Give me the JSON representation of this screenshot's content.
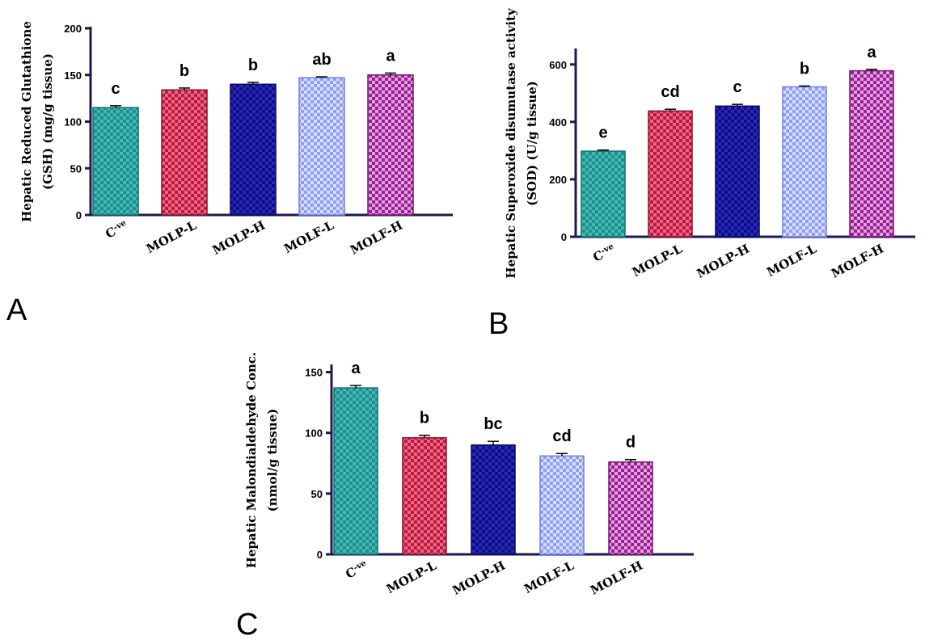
{
  "categories_raw": [
    "C-ve",
    "MOLP-L",
    "MOLP-H",
    "MOLF-L",
    "MOLF-H"
  ],
  "colors": {
    "teal": "#17928f",
    "teal_light": "#4bb5b3",
    "red": "#c0183d",
    "red_light": "#e66a86",
    "navy": "#0d0d8c",
    "navy_light": "#2a2ab0",
    "periwinkle": "#8e9ef8",
    "periwinkle_light": "#d8defe",
    "purple": "#9a1f95",
    "purple_light": "#e0a3dd",
    "axis": "#1a1a50"
  },
  "chart_data": [
    {
      "panel": "A",
      "type": "bar",
      "ylabel_line1": "Hepatic Reduced Glutathione",
      "ylabel_line2": "(GSH) (mg/g tissue)",
      "categories": [
        {
          "base": "C",
          "sup": "-ve"
        },
        {
          "base": "MOLP-L",
          "sup": ""
        },
        {
          "base": "MOLP-H",
          "sup": ""
        },
        {
          "base": "MOLF-L",
          "sup": ""
        },
        {
          "base": "MOLF-H",
          "sup": ""
        }
      ],
      "values": [
        115,
        134,
        140,
        147,
        150
      ],
      "errors": [
        2,
        2,
        2,
        1,
        2
      ],
      "letters": [
        "c",
        "b",
        "b",
        "ab",
        "a"
      ],
      "ylim": [
        0,
        200
      ],
      "yticks": [
        0,
        50,
        100,
        150,
        200
      ]
    },
    {
      "panel": "B",
      "type": "bar",
      "ylabel_line1": "Hepatic Superoxide disumutase activity",
      "ylabel_line2": "(SOD) (U/g tissue)",
      "categories": [
        {
          "base": "C",
          "sup": "-ve"
        },
        {
          "base": "MOLP-L",
          "sup": ""
        },
        {
          "base": "MOLP-H",
          "sup": ""
        },
        {
          "base": "MOLF-L",
          "sup": ""
        },
        {
          "base": "MOLF-H",
          "sup": ""
        }
      ],
      "values": [
        298,
        438,
        455,
        522,
        578
      ],
      "errors": [
        4,
        6,
        6,
        3,
        5
      ],
      "letters": [
        "e",
        "cd",
        "c",
        "b",
        "a"
      ],
      "ylim": [
        0,
        650
      ],
      "yticks": [
        0,
        200,
        400,
        600
      ]
    },
    {
      "panel": "C",
      "type": "bar",
      "ylabel_line1": "Hepatic Malondialdehyde Conc.",
      "ylabel_line2": "(nmol/g tissue)",
      "categories": [
        {
          "base": "C",
          "sup": "-ve"
        },
        {
          "base": "MOLP-L",
          "sup": ""
        },
        {
          "base": "MOLP-H",
          "sup": ""
        },
        {
          "base": "MOLF-L",
          "sup": ""
        },
        {
          "base": "MOLF-H",
          "sup": ""
        }
      ],
      "values": [
        137,
        96,
        90,
        81,
        76
      ],
      "errors": [
        2,
        2,
        3,
        2,
        2
      ],
      "letters": [
        "a",
        "b",
        "bc",
        "cd",
        "d"
      ],
      "ylim": [
        0,
        155
      ],
      "yticks": [
        0,
        50,
        100,
        150
      ]
    }
  ]
}
